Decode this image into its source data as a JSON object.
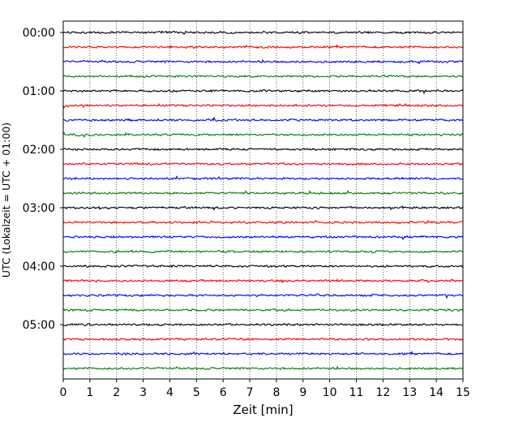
{
  "chart_data": {
    "type": "line",
    "title": "",
    "xlabel": "Zeit  [min]",
    "ylabel": "UTC (Lokalzeit = UTC + 01:00)",
    "xlim": [
      0,
      15
    ],
    "xticks": [
      "0",
      "1",
      "2",
      "3",
      "4",
      "5",
      "6",
      "7",
      "8",
      "9",
      "10",
      "11",
      "12",
      "13",
      "14",
      "15"
    ],
    "ytick_labels": [
      "00:00",
      "01:00",
      "02:00",
      "03:00",
      "04:00",
      "05:00"
    ],
    "traces_per_hour": 4,
    "trace_count": 24,
    "trace_colors": [
      "#000000",
      "#ff0000",
      "#0000ff",
      "#008000"
    ],
    "grid": {
      "x": "dotted",
      "y": false
    },
    "legend": false
  }
}
